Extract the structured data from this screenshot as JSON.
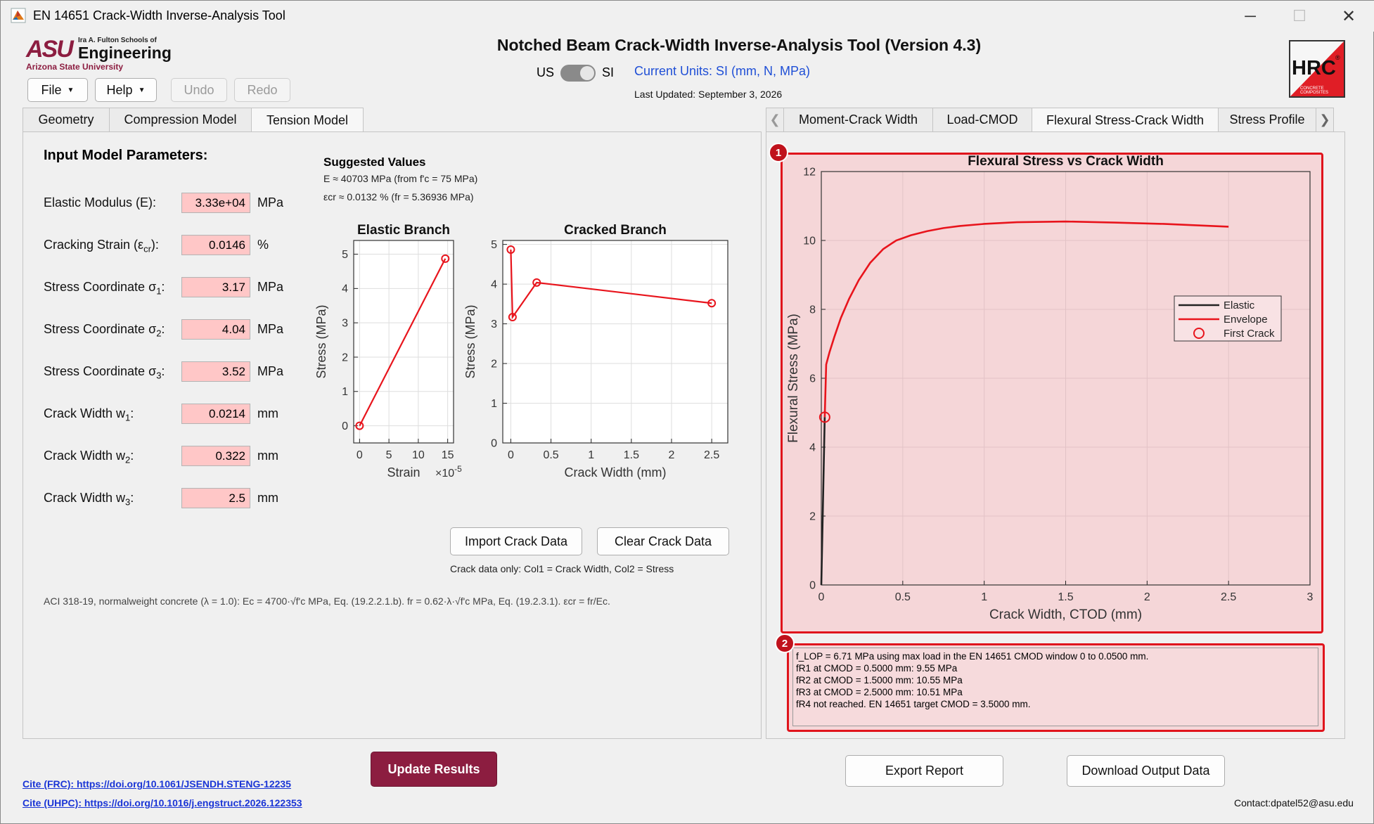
{
  "window": {
    "title": "EN 14651 Crack-Width Inverse-Analysis Tool"
  },
  "logo": {
    "line1": "Ira A. Fulton Schools of",
    "line2": "Engineering",
    "line3": "Arizona State University",
    "mark": "ASU"
  },
  "hrc_logo": {
    "text": "HRC",
    "sub": "CONCRETE COMPOSITES",
    "mark": "®"
  },
  "header": {
    "app_title": "Notched Beam Crack-Width Inverse-Analysis Tool (Version 4.3)",
    "unit_us": "US",
    "unit_si": "SI",
    "current_units": "Current Units: SI (mm, N, MPa)",
    "last_updated": "Last Updated: September 3, 2026"
  },
  "menu": {
    "file": "File",
    "help": "Help",
    "undo": "Undo",
    "redo": "Redo"
  },
  "left_tabs": [
    "Geometry",
    "Compression Model",
    "Tension Model"
  ],
  "right_tabs": [
    "Moment-Crack Width",
    "Load-CMOD",
    "Flexural Stress-Crack Width",
    "Stress Profile"
  ],
  "inputs": {
    "heading": "Input Model Parameters:",
    "rows": [
      {
        "label": "Elastic Modulus (E):",
        "value": "3.33e+04",
        "unit": "MPa"
      },
      {
        "label": "Cracking Strain (ε",
        "sub": "cr",
        "tail": "):",
        "value": "0.0146",
        "unit": "%"
      },
      {
        "label": "Stress Coordinate σ",
        "sub": "1",
        "tail": ":",
        "value": "3.17",
        "unit": "MPa"
      },
      {
        "label": "Stress Coordinate σ",
        "sub": "2",
        "tail": ":",
        "value": "4.04",
        "unit": "MPa"
      },
      {
        "label": "Stress Coordinate σ",
        "sub": "3",
        "tail": ":",
        "value": "3.52",
        "unit": "MPa"
      },
      {
        "label": "Crack Width w",
        "sub": "1",
        "tail": ":",
        "value": "0.0214",
        "unit": "mm"
      },
      {
        "label": "Crack Width w",
        "sub": "2",
        "tail": ":",
        "value": "0.322",
        "unit": "mm"
      },
      {
        "label": "Crack Width w",
        "sub": "3",
        "tail": ":",
        "value": "2.5",
        "unit": "mm"
      }
    ]
  },
  "suggested": {
    "title": "Suggested Values",
    "line1": "E ≈ 40703 MPa  (from f'c = 75 MPa)",
    "line2": "εcr ≈ 0.0132 %  (fr = 5.36936 MPa)"
  },
  "buttons": {
    "import": "Import Crack Data",
    "clear": "Clear Crack Data",
    "crack_note": "Crack data only: Col1 = Crack Width, Col2 = Stress",
    "update": "Update Results",
    "export": "Export Report",
    "download": "Download Output Data"
  },
  "aci_note": "ACI 318-19, normalweight concrete (λ = 1.0): Ec = 4700·√f'c MPa, Eq. (19.2.2.1.b). fr = 0.62·λ·√f'c MPa, Eq. (19.2.3.1). εcr = fr/Ec.",
  "footer": {
    "cite_frc": "Cite (FRC): https://doi.org/10.1061/JSENDH.STENG-12235",
    "cite_uhpc": "Cite (UHPC): https://doi.org/10.1016/j.engstruct.2026.122353",
    "contact": "Contact:dpatel52@asu.edu"
  },
  "badges": [
    "1",
    "2"
  ],
  "results": [
    "f_LOP = 6.71 MPa using max load in the EN 14651 CMOD window 0 to 0.0500 mm.",
    "fR1 at CMOD = 0.5000 mm: 9.55 MPa",
    "fR2 at CMOD = 1.5000 mm: 10.55 MPa",
    "fR3 at CMOD = 2.5000 mm: 10.51 MPa",
    "fR4 not reached. EN 14651 target CMOD = 3.5000 mm."
  ],
  "colors": {
    "accent": "#8c1d40",
    "series": "#e8141c",
    "field_bg": "#ffc7c7",
    "highlight": "#f5d6d8"
  },
  "chart_data": [
    {
      "type": "line",
      "title": "Elastic Branch",
      "xlabel": "Strain",
      "x_multiplier": "×10",
      "x_multiplier_exp": "-5",
      "ylabel": "Stress (MPa)",
      "xlim": [
        -1,
        16
      ],
      "ylim": [
        -0.5,
        5.4
      ],
      "xticks": [
        0,
        5,
        10,
        15
      ],
      "yticks": [
        0,
        1,
        2,
        3,
        4,
        5
      ],
      "grid": true,
      "series": [
        {
          "x": [
            0,
            14.6
          ],
          "y": [
            0,
            4.87
          ],
          "markers": true
        }
      ]
    },
    {
      "type": "line",
      "title": "Cracked Branch",
      "xlabel": "Crack Width (mm)",
      "ylabel": "Stress (MPa)",
      "xlim": [
        -0.1,
        2.7
      ],
      "ylim": [
        0,
        5.1
      ],
      "xticks": [
        0,
        0.5,
        1,
        1.5,
        2,
        2.5
      ],
      "yticks": [
        0,
        1,
        2,
        3,
        4,
        5
      ],
      "grid": true,
      "series": [
        {
          "x": [
            0,
            0.0214,
            0.322,
            2.5
          ],
          "y": [
            4.87,
            3.17,
            4.04,
            3.52
          ],
          "markers": true
        }
      ]
    },
    {
      "type": "line",
      "title": "Flexural Stress vs Crack Width",
      "xlabel": "Crack Width, CTOD (mm)",
      "ylabel": "Flexural Stress (MPa)",
      "xlim": [
        0,
        3
      ],
      "ylim": [
        0,
        12
      ],
      "xticks": [
        0,
        0.5,
        1,
        1.5,
        2,
        2.5,
        3
      ],
      "yticks": [
        0,
        2,
        4,
        6,
        8,
        10,
        12
      ],
      "grid": true,
      "legend": {
        "position": "right",
        "entries": [
          "Elastic",
          "Envelope",
          "First Crack"
        ]
      },
      "series": [
        {
          "name": "Elastic",
          "color": "#222222",
          "x": [
            0,
            0.021
          ],
          "y": [
            0,
            4.87
          ]
        },
        {
          "name": "Envelope",
          "color": "#e8141c",
          "x": [
            0.021,
            0.03,
            0.05,
            0.08,
            0.12,
            0.17,
            0.23,
            0.3,
            0.38,
            0.46,
            0.55,
            0.65,
            0.75,
            0.85,
            1.0,
            1.2,
            1.5,
            1.8,
            2.1,
            2.5
          ],
          "y": [
            4.87,
            6.4,
            6.75,
            7.2,
            7.75,
            8.3,
            8.85,
            9.35,
            9.75,
            10.0,
            10.15,
            10.27,
            10.36,
            10.42,
            10.48,
            10.53,
            10.55,
            10.52,
            10.48,
            10.4
          ]
        },
        {
          "name": "First Crack",
          "color": "#e8141c",
          "x": [
            0.021
          ],
          "y": [
            4.87
          ],
          "marker_only": true
        }
      ]
    }
  ]
}
